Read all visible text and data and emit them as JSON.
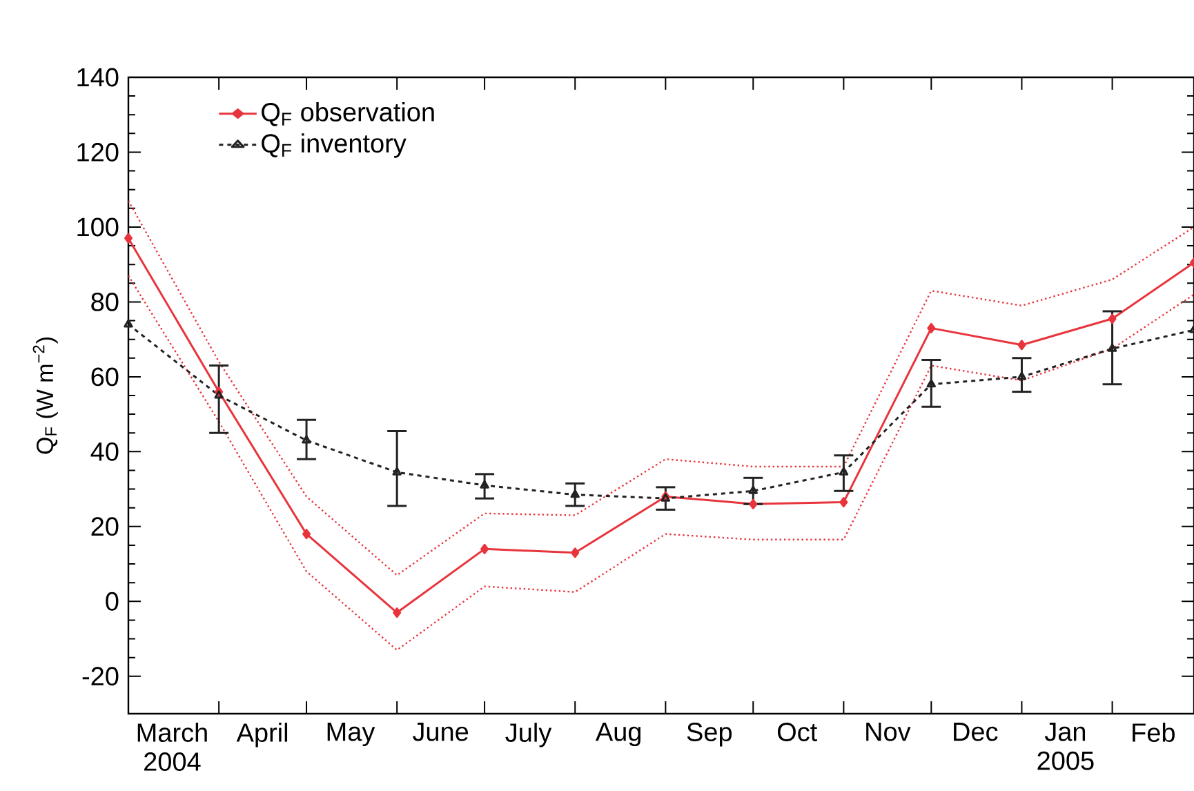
{
  "chart_data": {
    "type": "line",
    "ylabel": "Q$_{F}$ (W m$^{−2}$)",
    "x": [
      "2004-03-01",
      "2004-04-01",
      "2004-05-01",
      "2004-06-01",
      "2004-07-01",
      "2004-08-01",
      "2004-09-01",
      "2004-10-01",
      "2004-11-01",
      "2004-12-01",
      "2005-01-01",
      "2005-02-01",
      "2005-03-01"
    ],
    "xlim": [
      "2004-03-01",
      "2005-03-01"
    ],
    "xticks": [
      {
        "value": "2004-04-01",
        "label": null
      },
      {
        "value": "2004-05-01",
        "label": null
      },
      {
        "value": "2004-06-01",
        "label": null
      },
      {
        "value": "2004-07-01",
        "label": null
      },
      {
        "value": "2004-08-01",
        "label": null
      },
      {
        "value": "2004-09-01",
        "label": null
      },
      {
        "value": "2004-10-01",
        "label": null
      },
      {
        "value": "2004-11-01",
        "label": null
      },
      {
        "value": "2004-12-01",
        "label": null
      },
      {
        "value": "2005-01-01",
        "label": null
      },
      {
        "value": "2005-02-01",
        "label": null
      },
      {
        "value": "2004-03-16",
        "label": "March 2004"
      },
      {
        "value": "2004-04-16",
        "label": "April"
      },
      {
        "value": "2004-05-16",
        "label": "May"
      },
      {
        "value": "2004-06-16",
        "label": "June"
      },
      {
        "value": "2004-07-16",
        "label": "July"
      },
      {
        "value": "2004-08-16",
        "label": "Aug"
      },
      {
        "value": "2004-09-16",
        "label": "Sep"
      },
      {
        "value": "2004-10-16",
        "label": "Oct"
      },
      {
        "value": "2004-11-16",
        "label": "Nov"
      },
      {
        "value": "2004-12-16",
        "label": "Dec"
      },
      {
        "value": "2005-01-16",
        "label": "Jan 2005"
      },
      {
        "value": "2005-02-15",
        "label": "Feb"
      }
    ],
    "ylim": [
      -30,
      140
    ],
    "yticks": [
      -20,
      0,
      20,
      40,
      60,
      80,
      100,
      120,
      140
    ],
    "legend": "top left",
    "series": [
      {
        "name": "Q$_{F}$ observation",
        "color": "#e8343c",
        "marker": "diamond",
        "line_style": "solid",
        "values": [
          97,
          56,
          18,
          -3,
          14,
          13,
          28,
          26,
          26.5,
          73,
          68.5,
          75.5,
          90.5
        ]
      },
      {
        "color": "#e8343c",
        "marker": "none",
        "line_style": "dotted",
        "values": [
          87,
          48,
          8,
          -13,
          4,
          2.5,
          18,
          16.5,
          16.5,
          63,
          59,
          67.5,
          82
        ]
      },
      {
        "color": "#e8343c",
        "marker": "none",
        "line_style": "dotted",
        "values": [
          107,
          64,
          28,
          7,
          23.5,
          23,
          38,
          36,
          36,
          83,
          79,
          86,
          100
        ]
      },
      {
        "name": "Q$_{F}$ inventory",
        "color": "#222222",
        "marker": "triangle",
        "line_style": "dashed",
        "values": [
          74,
          55,
          43,
          34.5,
          31,
          28.5,
          27.5,
          29.5,
          34.5,
          58,
          60,
          67.5,
          72.5
        ],
        "errors": [
          null,
          [
            45,
            63
          ],
          [
            38,
            48.5
          ],
          [
            25.5,
            45.5
          ],
          [
            27.5,
            34
          ],
          [
            25.5,
            31.5
          ],
          [
            24.5,
            30.5
          ],
          [
            26,
            33
          ],
          [
            29.5,
            39
          ],
          [
            52,
            64.5
          ],
          [
            56,
            65
          ],
          [
            58,
            77.5
          ],
          null
        ]
      }
    ]
  }
}
